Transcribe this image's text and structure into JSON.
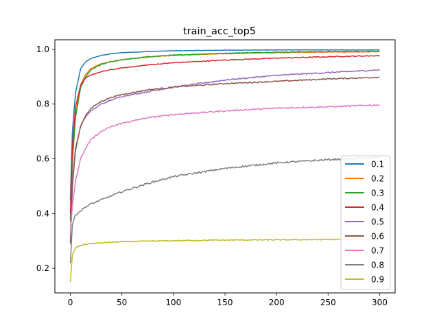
{
  "chart_data": {
    "type": "line",
    "title": "train_acc_top5",
    "xlabel": "",
    "ylabel": "",
    "xlim": [
      -15,
      315
    ],
    "ylim": [
      0.11,
      1.035
    ],
    "xticks": [
      0,
      50,
      100,
      150,
      200,
      250,
      300
    ],
    "yticks": [
      0.2,
      0.4,
      0.6,
      0.8,
      1.0
    ],
    "xtick_labels": [
      "0",
      "50",
      "100",
      "150",
      "200",
      "250",
      "300"
    ],
    "ytick_labels": [
      "0.2",
      "0.4",
      "0.6",
      "0.8",
      "1.0"
    ],
    "grid": false,
    "legend_position": "lower-right",
    "series": [
      {
        "name": "0.1",
        "color": "#1f77b4",
        "x": [
          0,
          2,
          5,
          10,
          15,
          20,
          30,
          40,
          50,
          75,
          100,
          150,
          200,
          250,
          300
        ],
        "y": [
          0.45,
          0.7,
          0.84,
          0.93,
          0.955,
          0.967,
          0.978,
          0.984,
          0.988,
          0.992,
          0.995,
          0.997,
          0.998,
          0.998,
          0.998
        ]
      },
      {
        "name": "0.2",
        "color": "#ff7f0e",
        "x": [
          0,
          2,
          5,
          10,
          15,
          20,
          30,
          40,
          50,
          75,
          100,
          150,
          200,
          250,
          300
        ],
        "y": [
          0.38,
          0.6,
          0.76,
          0.87,
          0.91,
          0.93,
          0.947,
          0.956,
          0.962,
          0.972,
          0.978,
          0.984,
          0.988,
          0.99,
          0.991
        ]
      },
      {
        "name": "0.3",
        "color": "#2ca02c",
        "x": [
          0,
          2,
          5,
          10,
          15,
          20,
          30,
          40,
          50,
          75,
          100,
          150,
          200,
          250,
          300
        ],
        "y": [
          0.37,
          0.59,
          0.75,
          0.86,
          0.9,
          0.925,
          0.945,
          0.955,
          0.962,
          0.973,
          0.979,
          0.986,
          0.99,
          0.992,
          0.993
        ]
      },
      {
        "name": "0.4",
        "color": "#d62728",
        "x": [
          0,
          2,
          5,
          10,
          15,
          20,
          30,
          40,
          50,
          75,
          100,
          150,
          200,
          250,
          300
        ],
        "y": [
          0.4,
          0.64,
          0.79,
          0.87,
          0.895,
          0.907,
          0.918,
          0.926,
          0.932,
          0.943,
          0.951,
          0.961,
          0.968,
          0.973,
          0.977
        ]
      },
      {
        "name": "0.5",
        "color": "#9467bd",
        "x": [
          0,
          2,
          5,
          10,
          15,
          20,
          30,
          40,
          50,
          75,
          100,
          150,
          200,
          250,
          300
        ],
        "y": [
          0.3,
          0.52,
          0.64,
          0.72,
          0.755,
          0.775,
          0.8,
          0.815,
          0.828,
          0.845,
          0.862,
          0.888,
          0.905,
          0.915,
          0.925
        ]
      },
      {
        "name": "0.6",
        "color": "#8c564b",
        "x": [
          0,
          2,
          5,
          10,
          15,
          20,
          30,
          40,
          50,
          75,
          100,
          150,
          200,
          250,
          300
        ],
        "y": [
          0.29,
          0.5,
          0.63,
          0.72,
          0.76,
          0.785,
          0.81,
          0.825,
          0.835,
          0.852,
          0.862,
          0.875,
          0.883,
          0.892,
          0.898
        ]
      },
      {
        "name": "0.7",
        "color": "#e377c2",
        "x": [
          0,
          2,
          5,
          10,
          15,
          20,
          30,
          40,
          50,
          75,
          100,
          150,
          200,
          250,
          300
        ],
        "y": [
          0.32,
          0.43,
          0.52,
          0.6,
          0.64,
          0.67,
          0.7,
          0.718,
          0.73,
          0.75,
          0.762,
          0.775,
          0.785,
          0.79,
          0.797
        ]
      },
      {
        "name": "0.8",
        "color": "#7f7f7f",
        "x": [
          0,
          2,
          5,
          10,
          15,
          20,
          30,
          40,
          50,
          75,
          100,
          150,
          200,
          250,
          300
        ],
        "y": [
          0.22,
          0.36,
          0.395,
          0.41,
          0.425,
          0.435,
          0.45,
          0.465,
          0.48,
          0.51,
          0.535,
          0.565,
          0.585,
          0.597,
          0.605
        ]
      },
      {
        "name": "0.9",
        "color": "#bcbd22",
        "x": [
          0,
          2,
          5,
          10,
          15,
          20,
          30,
          40,
          50,
          75,
          100,
          150,
          200,
          250,
          300
        ],
        "y": [
          0.15,
          0.25,
          0.275,
          0.283,
          0.288,
          0.29,
          0.293,
          0.295,
          0.297,
          0.299,
          0.301,
          0.303,
          0.304,
          0.305,
          0.306
        ]
      }
    ]
  }
}
